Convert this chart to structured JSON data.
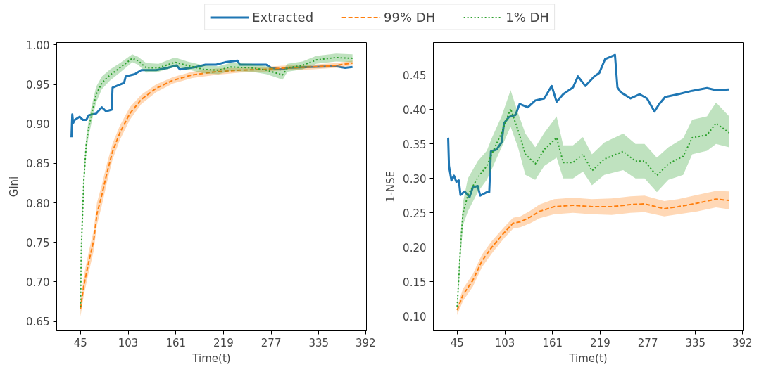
{
  "chart_data": [
    {
      "type": "line",
      "xlabel": "Time(t)",
      "ylabel": "Gini",
      "legend": "top",
      "grid": false,
      "xlim": [
        16,
        393
      ],
      "xticks": [
        45,
        103,
        161,
        219,
        277,
        335,
        392
      ],
      "ylim": [
        0.638,
        1.003
      ],
      "yticks": [
        {
          "value": 0.65,
          "label": "0.65"
        },
        {
          "value": 0.7,
          "label": "0.70"
        },
        {
          "value": 0.75,
          "label": "0.75"
        },
        {
          "value": 0.8,
          "label": "0.80"
        },
        {
          "value": 0.85,
          "label": "0.85"
        },
        {
          "value": 0.9,
          "label": "0.90"
        },
        {
          "value": 0.95,
          "label": "0.95"
        },
        {
          "value": 1.0,
          "label": "1.00"
        }
      ],
      "series": [
        {
          "name": "Extracted",
          "color": "#1f77b4",
          "line_style": "solid",
          "x": [
            34,
            35,
            36,
            38,
            44,
            48,
            52,
            55,
            64,
            71,
            76,
            83,
            84,
            98,
            100,
            111,
            119,
            137,
            151,
            162,
            166,
            186,
            197,
            210,
            221,
            236,
            239,
            271,
            277,
            288,
            297,
            326,
            356,
            367,
            376
          ],
          "values": [
            0.883,
            0.912,
            0.901,
            0.905,
            0.909,
            0.905,
            0.905,
            0.911,
            0.913,
            0.921,
            0.916,
            0.918,
            0.946,
            0.952,
            0.96,
            0.963,
            0.968,
            0.968,
            0.971,
            0.974,
            0.969,
            0.972,
            0.975,
            0.975,
            0.978,
            0.98,
            0.975,
            0.975,
            0.971,
            0.969,
            0.971,
            0.972,
            0.973,
            0.971,
            0.972
          ]
        },
        {
          "name": "99% DH",
          "color": "#ff7f0e",
          "line_style": "dashed",
          "x": [
            45,
            49,
            55,
            61,
            65,
            71,
            77,
            84,
            93,
            105,
            119,
            137,
            157,
            181,
            210,
            239,
            268,
            297,
            326,
            356,
            376
          ],
          "values": [
            0.666,
            0.695,
            0.725,
            0.752,
            0.786,
            0.81,
            0.837,
            0.865,
            0.889,
            0.913,
            0.931,
            0.945,
            0.955,
            0.962,
            0.966,
            0.968,
            0.969,
            0.971,
            0.972,
            0.974,
            0.977
          ],
          "lower": [
            0.656,
            0.683,
            0.712,
            0.739,
            0.772,
            0.797,
            0.825,
            0.855,
            0.88,
            0.905,
            0.925,
            0.94,
            0.951,
            0.958,
            0.962,
            0.965,
            0.966,
            0.968,
            0.969,
            0.971,
            0.974
          ],
          "upper": [
            0.676,
            0.707,
            0.738,
            0.765,
            0.8,
            0.823,
            0.849,
            0.875,
            0.898,
            0.921,
            0.937,
            0.95,
            0.959,
            0.966,
            0.97,
            0.971,
            0.972,
            0.974,
            0.975,
            0.977,
            0.98
          ]
        },
        {
          "name": "1% DH",
          "color": "#2ca02c",
          "line_style": "dotted",
          "x": [
            45,
            46,
            49,
            52,
            55,
            60,
            64,
            71,
            81,
            93,
            108,
            115,
            125,
            140,
            160,
            175,
            195,
            213,
            227,
            253,
            271,
            291,
            297,
            315,
            332,
            356,
            376
          ],
          "values": [
            0.668,
            0.743,
            0.828,
            0.874,
            0.895,
            0.919,
            0.937,
            0.952,
            0.962,
            0.971,
            0.983,
            0.98,
            0.971,
            0.971,
            0.978,
            0.974,
            0.969,
            0.968,
            0.972,
            0.971,
            0.968,
            0.962,
            0.971,
            0.974,
            0.981,
            0.984,
            0.983
          ],
          "lower": [
            0.656,
            0.733,
            0.818,
            0.864,
            0.885,
            0.909,
            0.927,
            0.944,
            0.955,
            0.965,
            0.978,
            0.975,
            0.965,
            0.966,
            0.972,
            0.969,
            0.964,
            0.963,
            0.967,
            0.966,
            0.963,
            0.956,
            0.966,
            0.969,
            0.976,
            0.979,
            0.978
          ],
          "upper": [
            0.68,
            0.753,
            0.838,
            0.884,
            0.905,
            0.929,
            0.947,
            0.96,
            0.969,
            0.977,
            0.988,
            0.985,
            0.977,
            0.976,
            0.984,
            0.979,
            0.974,
            0.973,
            0.977,
            0.976,
            0.973,
            0.968,
            0.976,
            0.979,
            0.986,
            0.989,
            0.988
          ]
        }
      ]
    },
    {
      "type": "line",
      "xlabel": "Time(t)",
      "ylabel": "1-NSE",
      "grid": false,
      "xlim": [
        16,
        393
      ],
      "xticks": [
        45,
        103,
        161,
        219,
        277,
        335,
        392
      ],
      "ylim": [
        0.079,
        0.497
      ],
      "yticks": [
        {
          "value": 0.1,
          "label": "0.10"
        },
        {
          "value": 0.15,
          "label": "0.15"
        },
        {
          "value": 0.2,
          "label": "0.20"
        },
        {
          "value": 0.25,
          "label": "0.25"
        },
        {
          "value": 0.3,
          "label": "0.30"
        },
        {
          "value": 0.35,
          "label": "0.35"
        },
        {
          "value": 0.4,
          "label": "0.40"
        },
        {
          "value": 0.45,
          "label": "0.45"
        }
      ],
      "series": [
        {
          "color": "#1f77b4",
          "line_style": "solid",
          "x": [
            34,
            35,
            38,
            41,
            44,
            47,
            49,
            54,
            60,
            64,
            70,
            73,
            81,
            84,
            86,
            93,
            99,
            102,
            108,
            116,
            121,
            131,
            140,
            151,
            160,
            166,
            174,
            186,
            192,
            201,
            212,
            218,
            225,
            233,
            237,
            240,
            244,
            256,
            267,
            276,
            285,
            291,
            298,
            314,
            331,
            349,
            360,
            376
          ],
          "values": [
            0.359,
            0.318,
            0.297,
            0.304,
            0.295,
            0.297,
            0.276,
            0.281,
            0.273,
            0.287,
            0.289,
            0.275,
            0.28,
            0.28,
            0.339,
            0.342,
            0.352,
            0.38,
            0.389,
            0.392,
            0.408,
            0.403,
            0.413,
            0.416,
            0.434,
            0.411,
            0.422,
            0.432,
            0.448,
            0.434,
            0.448,
            0.453,
            0.473,
            0.477,
            0.479,
            0.432,
            0.425,
            0.416,
            0.422,
            0.416,
            0.397,
            0.408,
            0.418,
            0.422,
            0.427,
            0.431,
            0.428,
            0.429
          ]
        },
        {
          "color": "#ff7f0e",
          "line_style": "dashed",
          "x": [
            45,
            52,
            64,
            75,
            87,
            102,
            113,
            122,
            134,
            145,
            163,
            186,
            209,
            233,
            256,
            273,
            297,
            314,
            337,
            360,
            376
          ],
          "values": [
            0.109,
            0.131,
            0.152,
            0.18,
            0.2,
            0.221,
            0.235,
            0.237,
            0.244,
            0.252,
            0.259,
            0.261,
            0.259,
            0.259,
            0.262,
            0.263,
            0.256,
            0.259,
            0.264,
            0.27,
            0.268
          ],
          "lower": [
            0.102,
            0.122,
            0.143,
            0.171,
            0.191,
            0.213,
            0.227,
            0.229,
            0.235,
            0.242,
            0.248,
            0.25,
            0.248,
            0.247,
            0.25,
            0.251,
            0.245,
            0.248,
            0.252,
            0.258,
            0.255
          ],
          "upper": [
            0.114,
            0.14,
            0.161,
            0.189,
            0.209,
            0.229,
            0.243,
            0.245,
            0.253,
            0.262,
            0.27,
            0.272,
            0.27,
            0.271,
            0.274,
            0.275,
            0.267,
            0.27,
            0.276,
            0.282,
            0.281
          ]
        },
        {
          "color": "#2ca02c",
          "line_style": "dotted",
          "x": [
            45,
            49,
            52,
            58,
            70,
            81,
            87,
            99,
            110,
            119,
            128,
            140,
            151,
            166,
            174,
            186,
            198,
            209,
            224,
            247,
            262,
            273,
            288,
            302,
            320,
            331,
            349,
            360,
            376
          ],
          "values": [
            0.114,
            0.2,
            0.249,
            0.276,
            0.301,
            0.318,
            0.335,
            0.366,
            0.401,
            0.37,
            0.335,
            0.321,
            0.342,
            0.359,
            0.323,
            0.323,
            0.335,
            0.311,
            0.328,
            0.339,
            0.325,
            0.325,
            0.304,
            0.321,
            0.332,
            0.359,
            0.363,
            0.38,
            0.366
          ],
          "lower": [
            0.105,
            0.185,
            0.232,
            0.252,
            0.28,
            0.298,
            0.313,
            0.345,
            0.375,
            0.345,
            0.305,
            0.298,
            0.318,
            0.33,
            0.3,
            0.3,
            0.31,
            0.29,
            0.305,
            0.312,
            0.3,
            0.3,
            0.28,
            0.298,
            0.305,
            0.335,
            0.34,
            0.35,
            0.345
          ],
          "upper": [
            0.12,
            0.215,
            0.265,
            0.3,
            0.325,
            0.34,
            0.358,
            0.39,
            0.428,
            0.395,
            0.365,
            0.345,
            0.366,
            0.39,
            0.348,
            0.348,
            0.36,
            0.335,
            0.352,
            0.365,
            0.35,
            0.35,
            0.33,
            0.345,
            0.358,
            0.385,
            0.39,
            0.41,
            0.39
          ]
        }
      ]
    }
  ]
}
